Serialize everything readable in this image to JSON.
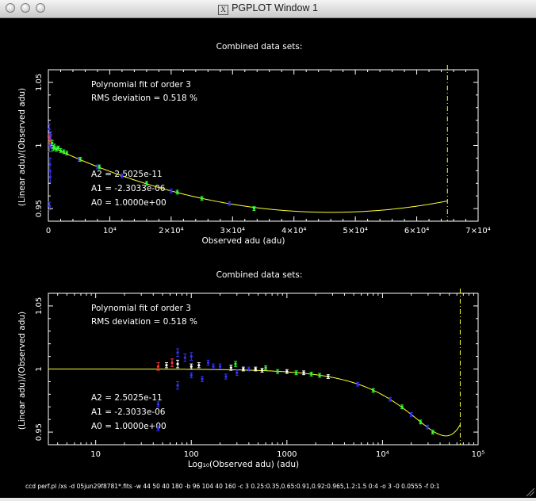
{
  "window": {
    "title": "PGPLOT Window 1",
    "icon": "x11-icon"
  },
  "command_line": "ccd perf.pl /xs -d 05jun29f8781*.fits -w 44 50 40 180 -b 96 104 40 160 -c 3 0.25:0.35,0.65:0.91,0.92:0.965,1.2:1.5 0:4 -o 3 -0 0.0555 -f 0:1",
  "colors": {
    "fit": "#ffff33",
    "blue": "#3333ff",
    "green": "#33ff33",
    "red": "#ff3333",
    "white": "#ffffff",
    "saturation": "#ffff33"
  },
  "chart_data": [
    {
      "type": "scatter",
      "title": "Combined data sets:",
      "xlabel": "Observed adu (adu)",
      "ylabel": "(Linear adu)/(Observed adu)",
      "xscale": "linear",
      "xlim": [
        0,
        70000
      ],
      "ylim": [
        0.94,
        1.06
      ],
      "xticks": [
        {
          "v": 0,
          "t": "0"
        },
        {
          "v": 10000,
          "t": "10⁴"
        },
        {
          "v": 20000,
          "t": "2×10⁴"
        },
        {
          "v": 30000,
          "t": "3×10⁴"
        },
        {
          "v": 40000,
          "t": "4×10⁴"
        },
        {
          "v": 50000,
          "t": "5×10⁴"
        },
        {
          "v": 60000,
          "t": "6×10⁴"
        },
        {
          "v": 70000,
          "t": "7×10⁴"
        }
      ],
      "yticks": [
        {
          "v": 0.95,
          "t": "0.95"
        },
        {
          "v": 1.0,
          "t": "1"
        },
        {
          "v": 1.05,
          "t": "1.05"
        }
      ],
      "annotations_top": [
        "Polynomial fit of order  3",
        "RMS deviation =    0.518 %"
      ],
      "annotations_bottom": [
        "A2 = 2.5025e-11",
        "A1 = -2.3033e-06",
        "A0 = 1.0000e+00"
      ],
      "saturation_x": 65000,
      "fit": {
        "A0": 1.0,
        "A1": -2.3033e-06,
        "A2": 2.5025e-11,
        "A3": 0,
        "xrange": [
          0,
          65000
        ]
      },
      "points": [
        {
          "x": 150,
          "y": 1.013,
          "e": 0.004,
          "c": "blue"
        },
        {
          "x": 200,
          "y": 1.0,
          "e": 0.005,
          "c": "blue"
        },
        {
          "x": 250,
          "y": 0.985,
          "e": 0.005,
          "c": "blue"
        },
        {
          "x": 300,
          "y": 0.975,
          "e": 0.004,
          "c": "blue"
        },
        {
          "x": 220,
          "y": 1.006,
          "e": 0.003,
          "c": "red"
        },
        {
          "x": 260,
          "y": 1.004,
          "e": 0.003,
          "c": "red"
        },
        {
          "x": 200,
          "y": 0.952,
          "e": 0.003,
          "c": "blue"
        },
        {
          "x": 400,
          "y": 1.008,
          "e": 0.003,
          "c": "blue"
        },
        {
          "x": 500,
          "y": 0.998,
          "e": 0.003,
          "c": "blue"
        },
        {
          "x": 600,
          "y": 1.002,
          "e": 0.002,
          "c": "green"
        },
        {
          "x": 800,
          "y": 0.998,
          "e": 0.002,
          "c": "green"
        },
        {
          "x": 1000,
          "y": 0.999,
          "e": 0.002,
          "c": "green"
        },
        {
          "x": 1300,
          "y": 0.997,
          "e": 0.0015,
          "c": "green"
        },
        {
          "x": 1600,
          "y": 0.998,
          "e": 0.0015,
          "c": "green"
        },
        {
          "x": 2000,
          "y": 0.996,
          "e": 0.0015,
          "c": "green"
        },
        {
          "x": 2500,
          "y": 0.995,
          "e": 0.0015,
          "c": "green"
        },
        {
          "x": 3000,
          "y": 0.994,
          "e": 0.0015,
          "c": "green"
        },
        {
          "x": 5000,
          "y": 0.989,
          "e": 0.0015,
          "c": "blue"
        },
        {
          "x": 5200,
          "y": 0.989,
          "e": 0.0015,
          "c": "green"
        },
        {
          "x": 8000,
          "y": 0.983,
          "e": 0.0015,
          "c": "blue"
        },
        {
          "x": 8300,
          "y": 0.983,
          "e": 0.0015,
          "c": "green"
        },
        {
          "x": 12000,
          "y": 0.976,
          "e": 0.0015,
          "c": "blue"
        },
        {
          "x": 16000,
          "y": 0.97,
          "e": 0.0015,
          "c": "green"
        },
        {
          "x": 20000,
          "y": 0.964,
          "e": 0.0015,
          "c": "blue"
        },
        {
          "x": 21000,
          "y": 0.963,
          "e": 0.0015,
          "c": "green"
        },
        {
          "x": 25000,
          "y": 0.958,
          "e": 0.0015,
          "c": "green"
        },
        {
          "x": 29500,
          "y": 0.954,
          "e": 0.0015,
          "c": "blue"
        },
        {
          "x": 33500,
          "y": 0.95,
          "e": 0.0015,
          "c": "green"
        }
      ]
    },
    {
      "type": "scatter",
      "title": "Combined data sets:",
      "xlabel": "Log₁₀(Observed adu) (adu)",
      "ylabel": "(Linear adu)/(Observed adu)",
      "xscale": "log",
      "xlim": [
        3.2,
        100000
      ],
      "ylim": [
        0.94,
        1.06
      ],
      "xticks": [
        {
          "v": 10,
          "t": "10"
        },
        {
          "v": 100,
          "t": "100"
        },
        {
          "v": 1000,
          "t": "1000"
        },
        {
          "v": 10000,
          "t": "10⁴"
        },
        {
          "v": 100000,
          "t": "10⁵"
        }
      ],
      "yticks": [
        {
          "v": 0.95,
          "t": "0.95"
        },
        {
          "v": 1.0,
          "t": "1"
        },
        {
          "v": 1.05,
          "t": "1.05"
        }
      ],
      "annotations_top": [
        "Polynomial fit of order  3",
        "RMS deviation =    0.518 %"
      ],
      "annotations_bottom": [
        "A2 = 2.5025e-11",
        "A1 = -2.3033e-06",
        "A0 = 1.0000e+00"
      ],
      "saturation_x": 65000,
      "fit": {
        "A0": 1.0,
        "A1": -2.3033e-06,
        "A2": 2.5025e-11,
        "A3": 0,
        "xrange": [
          3.2,
          65000
        ]
      },
      "points": [
        {
          "x": 45,
          "y": 1.002,
          "e": 0.003,
          "c": "red"
        },
        {
          "x": 45,
          "y": 0.953,
          "e": 0.002,
          "c": "blue"
        },
        {
          "x": 45,
          "y": 0.972,
          "e": 0.002,
          "c": "blue"
        },
        {
          "x": 55,
          "y": 1.003,
          "e": 0.002,
          "c": "white"
        },
        {
          "x": 63,
          "y": 1.005,
          "e": 0.003,
          "c": "red"
        },
        {
          "x": 72,
          "y": 1.013,
          "e": 0.003,
          "c": "blue"
        },
        {
          "x": 72,
          "y": 1.004,
          "e": 0.003,
          "c": "white"
        },
        {
          "x": 72,
          "y": 0.987,
          "e": 0.003,
          "c": "blue"
        },
        {
          "x": 86,
          "y": 1.009,
          "e": 0.003,
          "c": "blue"
        },
        {
          "x": 100,
          "y": 1.01,
          "e": 0.003,
          "c": "blue"
        },
        {
          "x": 100,
          "y": 1.002,
          "e": 0.002,
          "c": "white"
        },
        {
          "x": 100,
          "y": 0.995,
          "e": 0.002,
          "c": "blue"
        },
        {
          "x": 120,
          "y": 1.003,
          "e": 0.002,
          "c": "white"
        },
        {
          "x": 130,
          "y": 0.992,
          "e": 0.002,
          "c": "blue"
        },
        {
          "x": 150,
          "y": 1.005,
          "e": 0.002,
          "c": "blue"
        },
        {
          "x": 170,
          "y": 1.002,
          "e": 0.002,
          "c": "blue"
        },
        {
          "x": 200,
          "y": 1.002,
          "e": 0.002,
          "c": "blue"
        },
        {
          "x": 230,
          "y": 0.994,
          "e": 0.002,
          "c": "blue"
        },
        {
          "x": 260,
          "y": 1.001,
          "e": 0.002,
          "c": "white"
        },
        {
          "x": 290,
          "y": 1.004,
          "e": 0.002,
          "c": "green"
        },
        {
          "x": 300,
          "y": 0.997,
          "e": 0.002,
          "c": "blue"
        },
        {
          "x": 350,
          "y": 1.0,
          "e": 0.0015,
          "c": "white"
        },
        {
          "x": 400,
          "y": 1.0,
          "e": 0.0015,
          "c": "blue"
        },
        {
          "x": 470,
          "y": 1.0,
          "e": 0.0015,
          "c": "white"
        },
        {
          "x": 550,
          "y": 0.999,
          "e": 0.0015,
          "c": "white"
        },
        {
          "x": 600,
          "y": 1.001,
          "e": 0.0015,
          "c": "green"
        },
        {
          "x": 800,
          "y": 0.998,
          "e": 0.0015,
          "c": "green"
        },
        {
          "x": 1000,
          "y": 0.998,
          "e": 0.0015,
          "c": "white"
        },
        {
          "x": 1250,
          "y": 0.997,
          "e": 0.0015,
          "c": "green"
        },
        {
          "x": 1500,
          "y": 0.997,
          "e": 0.0015,
          "c": "white"
        },
        {
          "x": 1800,
          "y": 0.996,
          "e": 0.0015,
          "c": "green"
        },
        {
          "x": 2200,
          "y": 0.995,
          "e": 0.0015,
          "c": "green"
        },
        {
          "x": 2700,
          "y": 0.994,
          "e": 0.0015,
          "c": "white"
        },
        {
          "x": 5500,
          "y": 0.988,
          "e": 0.0015,
          "c": "blue"
        },
        {
          "x": 8000,
          "y": 0.983,
          "e": 0.0015,
          "c": "green"
        },
        {
          "x": 12000,
          "y": 0.976,
          "e": 0.0015,
          "c": "blue"
        },
        {
          "x": 16000,
          "y": 0.97,
          "e": 0.0015,
          "c": "green"
        },
        {
          "x": 20000,
          "y": 0.964,
          "e": 0.0015,
          "c": "blue"
        },
        {
          "x": 25000,
          "y": 0.958,
          "e": 0.0015,
          "c": "green"
        },
        {
          "x": 29500,
          "y": 0.954,
          "e": 0.0015,
          "c": "blue"
        },
        {
          "x": 33500,
          "y": 0.95,
          "e": 0.0015,
          "c": "green"
        }
      ]
    }
  ]
}
